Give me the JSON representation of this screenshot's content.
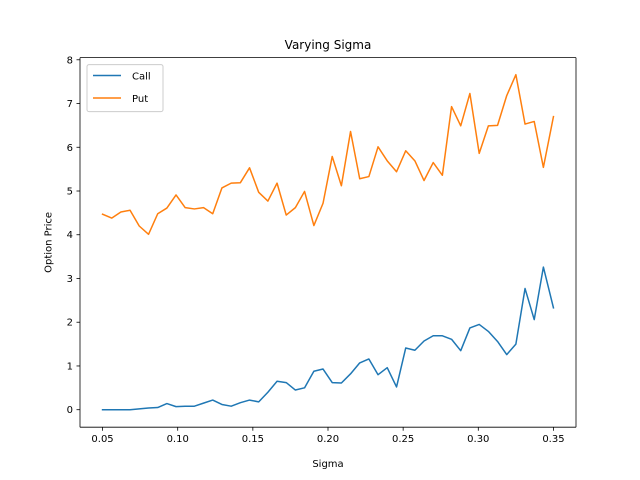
{
  "chart_data": {
    "type": "line",
    "title": "Varying Sigma",
    "xlabel": "Sigma",
    "ylabel": "Option Price",
    "xlim": [
      0.035,
      0.365
    ],
    "ylim": [
      -0.4,
      8.05
    ],
    "xticks": [
      0.05,
      0.1,
      0.15,
      0.2,
      0.25,
      0.3,
      0.35
    ],
    "xtick_labels": [
      "0.05",
      "0.10",
      "0.15",
      "0.20",
      "0.25",
      "0.30",
      "0.35"
    ],
    "yticks": [
      0,
      1,
      2,
      3,
      4,
      5,
      6,
      7,
      8
    ],
    "ytick_labels": [
      "0",
      "1",
      "2",
      "3",
      "4",
      "5",
      "6",
      "7",
      "8"
    ],
    "grid": false,
    "legend_position": "top-left",
    "x": [
      0.05,
      0.0561,
      0.0622,
      0.0683,
      0.0744,
      0.0806,
      0.0867,
      0.0928,
      0.0989,
      0.105,
      0.1111,
      0.1172,
      0.1233,
      0.1294,
      0.1356,
      0.1417,
      0.1478,
      0.1539,
      0.16,
      0.1661,
      0.1722,
      0.1783,
      0.1844,
      0.1906,
      0.1967,
      0.2028,
      0.2089,
      0.215,
      0.2211,
      0.2272,
      0.2333,
      0.2394,
      0.2456,
      0.2517,
      0.2578,
      0.2639,
      0.27,
      0.2761,
      0.2822,
      0.2883,
      0.2944,
      0.3006,
      0.3067,
      0.3128,
      0.3189,
      0.325,
      0.3311,
      0.3372,
      0.3433,
      0.35
    ],
    "series": [
      {
        "name": "Call",
        "color": "#1f77b4",
        "values": [
          0.0,
          0.0,
          0.0,
          0.0,
          0.02,
          0.04,
          0.05,
          0.14,
          0.07,
          0.08,
          0.08,
          0.15,
          0.22,
          0.12,
          0.08,
          0.16,
          0.22,
          0.18,
          0.4,
          0.65,
          0.62,
          0.45,
          0.5,
          0.88,
          0.93,
          0.62,
          0.61,
          0.82,
          1.07,
          1.16,
          0.8,
          0.96,
          0.52,
          1.41,
          1.36,
          1.57,
          1.69,
          1.69,
          1.61,
          1.35,
          1.87,
          1.95,
          1.79,
          1.56,
          1.26,
          1.5,
          2.77,
          2.06,
          3.26,
          2.33
        ]
      },
      {
        "name": "Put",
        "color": "#ff7f0e",
        "values": [
          4.47,
          4.38,
          4.52,
          4.56,
          4.2,
          4.01,
          4.48,
          4.61,
          4.91,
          4.62,
          4.59,
          4.62,
          4.48,
          5.07,
          5.18,
          5.19,
          5.53,
          4.97,
          4.77,
          5.18,
          4.45,
          4.62,
          4.99,
          4.21,
          4.72,
          5.79,
          5.12,
          6.36,
          5.28,
          5.33,
          6.01,
          5.69,
          5.44,
          5.92,
          5.69,
          5.24,
          5.65,
          5.36,
          6.93,
          6.49,
          7.23,
          5.86,
          6.49,
          6.5,
          7.18,
          7.66,
          6.53,
          6.59,
          5.54,
          6.7
        ]
      }
    ]
  }
}
